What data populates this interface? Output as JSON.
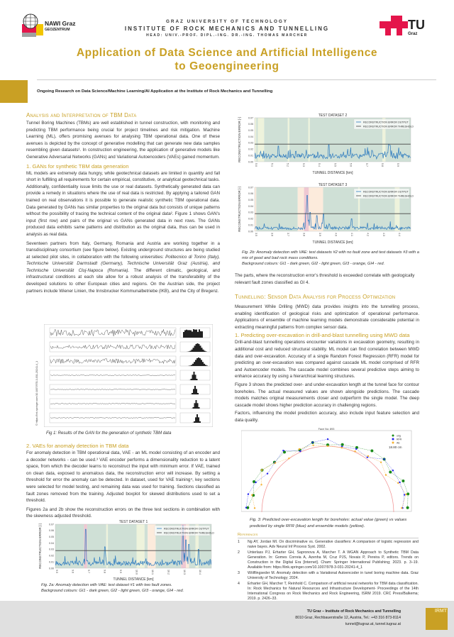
{
  "header": {
    "left_logo": {
      "name": "NAWI Graz",
      "sub": "GEOZENTRUM"
    },
    "university": "GRAZ UNIVERSITY OF TECHNOLOGY",
    "institute": "INSTITUTE OF ROCK MECHANICS AND TUNNELLING",
    "head": "HEAD: UNIV.-PROF. DIPL.-ING. DR.-ING. THOMAS MARCHER",
    "right_logo": {
      "name": "TU",
      "sub": "Graz"
    },
    "title_line1": "Application of Data Science and Artificial Intelligence",
    "title_line2": "to Geoengineering",
    "subtitle": "Ongoing Research on Data Science/Machine Learning/AI Application at the Institute of Rock Mechanics and Tunnelling"
  },
  "colors": {
    "accent": "#c9a024",
    "tu_red": "#e4154b",
    "footer_bg": "#e0e0e0",
    "gi1": "#cfe0d6",
    "gi2": "#eef3dc",
    "gi3": "#fcebdc",
    "gi4": "#efc8d2",
    "series": "#2e7bbf",
    "threshold": "#444444"
  },
  "left": {
    "h_tbm": "Analysis and Interpretation of TBM Data",
    "p_tbm": "Tunnel Boring Machines (TBMs) are well established in tunnel construction, with monitoring and predicting TBM performance being crucial for project timelines and risk mitigation. Machine Learning (ML), offers promising avenues for analysing TBM operational data. One of these avenues is depicted by the concept of generative modelling that can generate new data samples resembling given datasets¹. In construction engineering, the application of generative models like Generative Adversarial Networks (GANs) and Variational Autoencoders (VAEs) gained momentum.",
    "h_gan": "1. GANs for synthetic TBM data generation",
    "p_gan": "ML models are extremely data hungry, while geotechnical datasets are limited in quantity and fall short in fulfilling all requirements for certain empirical, constitutive, or analytical geotechnical tasks. Additionally, confidentiality issue limits the use or real datasets. Synthetically generated data can provide a remedy in situations where the use of real data is restricted. By applying a tailored GAN trained on real observations it is possible to generate realistic synthetic TBM operational data. Data generated by GANs has similar properties to the original data but consists of unique patterns without the possibility of tracing the technical content of the original data². Figure 1 shows GAN's input (first row) and pairs of the original vs GANs generated data in next rows. The GANs produced data exhibits same patterns and distribution as the original data, thus can be used in analysis as real data.",
    "p_partners_1": "Seventeen partners from Italy, Germany, Romania and Austria are working together in a transdisciplinary consortium (see figure below). Existing underground structures are being studied at selected pilot sites, in collaboration with the following universities: ",
    "p_partners_it": "Politecnico di Torino (Italy), Technische Universität Darmstadt (Germany), Technische Universität Graz (Austria), and Technische Universität Cluj-Napoca (Romania).",
    "p_partners_2": " The different climatic, geological, and infrastructural conditions at each site allow for a robust analysis of the transferability of the developed solutions to other European cities and regions. On the Austrian side, the project partners include Wiener Linien, the Innsbrucker Kommunalbetriebe (IKB), and the City of Bregenz.",
    "fig1_credit": "© https://link.springer.com/10.1007/978-3-031-20241-4_1",
    "fig1_caption": "Fig 1: Results of the GAN for the generation of synthetic TBM data",
    "h_vae": "2. VAEs for anomaly detection in TBM data",
    "p_vae": "For anomaly detection in TBM operational data, VAE - an ML model consisting of an encoder and a decoder networks - can be used.³ VAE encoder performs a dimensionality reduction to a latent space, from which the decoder learns to reconstruct the input with minimum error. If VAE, trained on clean data, exposed to anomalous data, the reconstruction error will increase. By setting a threshold for error the anomaly can be detected. In dataset, used for VAE training⁴, key sections were selected for model testing, and remaining data was used for training. Sections classified as fault zones removed from the training. Adjusted boxplot for skewed distributions used to set a threshold.",
    "p_fig2": "Figures 2a and 2b show the reconstruction errors on the three test sections in combination with the skewness adjusted threshold.",
    "fig2a_caption_1": "Fig. 2a: Anomaly detection with VAE: test dataset  #1 with two fault zones.",
    "fig2a_caption_2": "Background colours: GI1 - dark green, GI2 - light green, GI3 - orange, GI4 - red."
  },
  "vae_charts": [
    {
      "title": "TEST DATASET 1",
      "xlabel": "TUNNEL DISTANCE [km]",
      "ylabel": "RECONSTRUCTION ERROR [-]",
      "xlim": [
        9.5,
        10.48
      ],
      "ylim": [
        0,
        0.07
      ],
      "xticks": [
        "9.5",
        "9.6",
        "9.7",
        "9.8",
        "9.9",
        "10.0",
        "10.1",
        "10.2",
        "10.3",
        "10.4"
      ],
      "yticks": [
        "0.00",
        "0.01",
        "0.02",
        "0.03",
        "0.04",
        "0.05",
        "0.06",
        "0.07"
      ],
      "threshold": 0.028,
      "legend": [
        "RECONSTRUCTION ERROR OUTPUT",
        "RECONSTRUCTION ERROR THRESHOLD"
      ],
      "zones": [
        [
          9.5,
          9.68,
          "gi1"
        ],
        [
          9.68,
          9.7,
          "gi4"
        ],
        [
          9.7,
          9.82,
          "gi1"
        ],
        [
          9.82,
          9.83,
          "gi2"
        ],
        [
          9.83,
          10.01,
          "gi1"
        ],
        [
          10.01,
          10.06,
          "gi2"
        ],
        [
          10.06,
          10.08,
          "gi1"
        ],
        [
          10.08,
          10.13,
          "gi3"
        ],
        [
          10.13,
          10.29,
          "gi1"
        ],
        [
          10.29,
          10.32,
          "gi4"
        ],
        [
          10.32,
          10.34,
          "gi3"
        ],
        [
          10.34,
          10.38,
          "gi1"
        ],
        [
          10.38,
          10.4,
          "gi2"
        ],
        [
          10.4,
          10.48,
          "gi1"
        ]
      ],
      "peaks": [
        [
          9.69,
          0.062
        ],
        [
          9.81,
          0.034
        ],
        [
          10.3,
          0.068
        ],
        [
          10.32,
          0.045
        ],
        [
          10.34,
          0.038
        ],
        [
          10.4,
          0.03
        ]
      ],
      "base": 0.008
    },
    {
      "title": "TEST DATASET 2",
      "xlabel": "TUNNEL DISTANCE [km]",
      "ylabel": "RECONSTRUCTION ERROR [-]",
      "xlim": [
        5.0,
        5.99
      ],
      "ylim": [
        0,
        0.07
      ],
      "xticks": [
        "5.0",
        "5.1",
        "5.2",
        "5.3",
        "5.4",
        "5.5",
        "5.6",
        "5.7",
        "5.8",
        "5.9"
      ],
      "yticks": [
        "0.00",
        "0.01",
        "0.02",
        "0.03",
        "0.04",
        "0.05",
        "0.06",
        "0.07"
      ],
      "threshold": 0.028,
      "legend": [
        "RECONSTRUCTION ERROR OUTPUT",
        "RECONSTRUCTION ERROR THRESHOLD"
      ],
      "zones": [
        [
          5.0,
          5.01,
          "gi2"
        ],
        [
          5.01,
          5.02,
          "gi1"
        ],
        [
          5.02,
          5.06,
          "gi2"
        ],
        [
          5.06,
          5.21,
          "gi1"
        ],
        [
          5.21,
          5.22,
          "gi2"
        ],
        [
          5.22,
          5.34,
          "gi1"
        ],
        [
          5.34,
          5.35,
          "gi2"
        ],
        [
          5.35,
          5.81,
          "gi1"
        ],
        [
          5.81,
          5.83,
          "gi2"
        ],
        [
          5.83,
          5.99,
          "gi1"
        ]
      ],
      "peaks": [
        [
          5.15,
          0.025
        ],
        [
          5.47,
          0.027
        ],
        [
          5.85,
          0.028
        ],
        [
          5.86,
          0.026
        ]
      ],
      "base": 0.009
    },
    {
      "title": "TEST DATASET 3",
      "xlabel": "TUNNEL DISTANCE [km]",
      "ylabel": "RECONSTRUCTION ERROR [-]",
      "xlim": [
        3.5,
        4.48
      ],
      "ylim": [
        0,
        0.07
      ],
      "xticks": [
        "3.5",
        "3.6",
        "3.7",
        "3.8",
        "3.9",
        "4.0",
        "4.1",
        "4.2",
        "4.3",
        "4.4"
      ],
      "yticks": [
        "0.00",
        "0.01",
        "0.02",
        "0.03",
        "0.04",
        "0.05",
        "0.06",
        "0.07"
      ],
      "threshold": 0.028,
      "legend": [
        "RECONSTRUCTION ERROR OUTPUT",
        "RECONSTRUCTION ERROR THRESHOLD"
      ],
      "zones": [
        [
          3.5,
          3.51,
          "gi3"
        ],
        [
          3.51,
          3.77,
          "gi1"
        ],
        [
          3.77,
          3.81,
          "gi3"
        ],
        [
          3.81,
          3.84,
          "gi4"
        ],
        [
          3.84,
          3.93,
          "gi3"
        ],
        [
          3.93,
          4.15,
          "gi1"
        ],
        [
          4.15,
          4.16,
          "gi2"
        ],
        [
          4.16,
          4.38,
          "gi1"
        ],
        [
          4.38,
          4.41,
          "gi2"
        ],
        [
          4.41,
          4.48,
          "gi1"
        ]
      ],
      "peaks": [
        [
          3.83,
          0.057
        ],
        [
          3.85,
          0.03
        ],
        [
          3.89,
          0.025
        ],
        [
          3.93,
          0.028
        ],
        [
          4.11,
          0.02
        ]
      ],
      "base": 0.005
    }
  ],
  "right": {
    "fig2b_caption_1": "Fig. 2b: Anomaly detection with VAE: test datasets #2 with no fault zone and test datasets #3 with  a mix of good and bad rock mass conditions.",
    "fig2b_caption_2": "Background colours: GI1 - dark green, GI2 - light green, GI3 - orange, GI4 - red.",
    "p_parts": "The parts, where the reconstruction error's threshold is exceeded correlate with geologically relevant fault zones classified as GI 4.",
    "h_mwd": "Tunnelling: Sensor Data Analysis for Process Optimization",
    "p_mwd": "Measurement While Drilling (MWD) data provides insights into the tunnelling process, enabling identification of geological risks and optimization of operational performance. Applications of ensemble of machine learning models demonstrate considerable potential in extracting meaningful patterns from complex sensor data.",
    "h_over": "1. Predicting over-excavation in drill-and-blast tunnelling using MWD data",
    "p_over": "Drill-and-blast tunnelling operations encounter variations in excavation geometry, resulting in additional cost and reduced structural stability. ML model can find correlation between MWD data and over-excavation. Accuracy of a single Random Forest Regression (RFR) model for predicting an over-excavation was compared against cascade ML model comprised of RFR and Autoencoder models. The cascade model combines several predictive steps aiming to enhance accuracy by using a hierarchical learning structures.",
    "p_fig3": "Figure 3 shows the predicted over- and under-excavation length at the tunnel face for contour boreholes. The actual measured values are shown alongside predictions. The cascade models matches original measurements closer and outperform the single model. The deep cascade model shows higher prediction accuracy in challenging regions.",
    "p_factors": "Factors, influencing the model prediction accuracy, also include input feature selection and data quality.",
    "fig3": {
      "title": "Face No: 893",
      "legend": [
        "orig",
        "RFR",
        "AE"
      ],
      "annotation": "18.80 cm"
    },
    "fig3_caption": "Fig. 3: Predicted over-excavation length for boreholes: actual value (green) vs values predicted by single RFR (blue) and ensemble models (yellow).",
    "h_refs": "References",
    "refs": [
      {
        "n": "1",
        "text": "Ng AY, Jordan MI. On discriminative vs. Generative classifiers: A comparison of logistic regression and naive bayes. Adv Neural Inf Process Syst. 2002."
      },
      {
        "n": "2",
        "text": "Unterlass PJ, Erharter GH, Sapronova A, Marcher T. A WGAN Approach to Synthetic TBM Data Generation. In: Gomes Correia A, Azenha M, Cruz PJS, Novais P, Pereira P, editors. Trends on Construction in the Digital Era [Internet]. Cham: Springer International Publishing; 2023. p. 3–19. Available from: https://link.springer.com/10.1007/978-3-031-20241-4_1"
      },
      {
        "n": "3",
        "text": "Wölflingseder M. Anomaly detection with a Variational Autoencoder in tunel boring machine data. Graz University of Technology; 2024."
      },
      {
        "n": "4",
        "text": "Erharter GH, Marcher T, Reinhold C. Comparison of artificial neural networks for TBM data classification. In: Rock Mechanics for Natural Resources and Infrastructure Development- Proceedings of the 14th International Congress on Rock Mechanics and Rock Engineering, ISRM 2019. CRC Press/Balkema; 2019. p. 2426–33."
      }
    ]
  },
  "footer": {
    "org": "TU Graz – Institute of Rock Mechanics and Tunnelling",
    "address": "8010 Graz, Rechbauerstraße 12, Austria, Tel.: +43 316 873-8114",
    "contact": "tunnel@tugraz.at, tunnel.tugraz.at",
    "logo": "IRMT"
  }
}
